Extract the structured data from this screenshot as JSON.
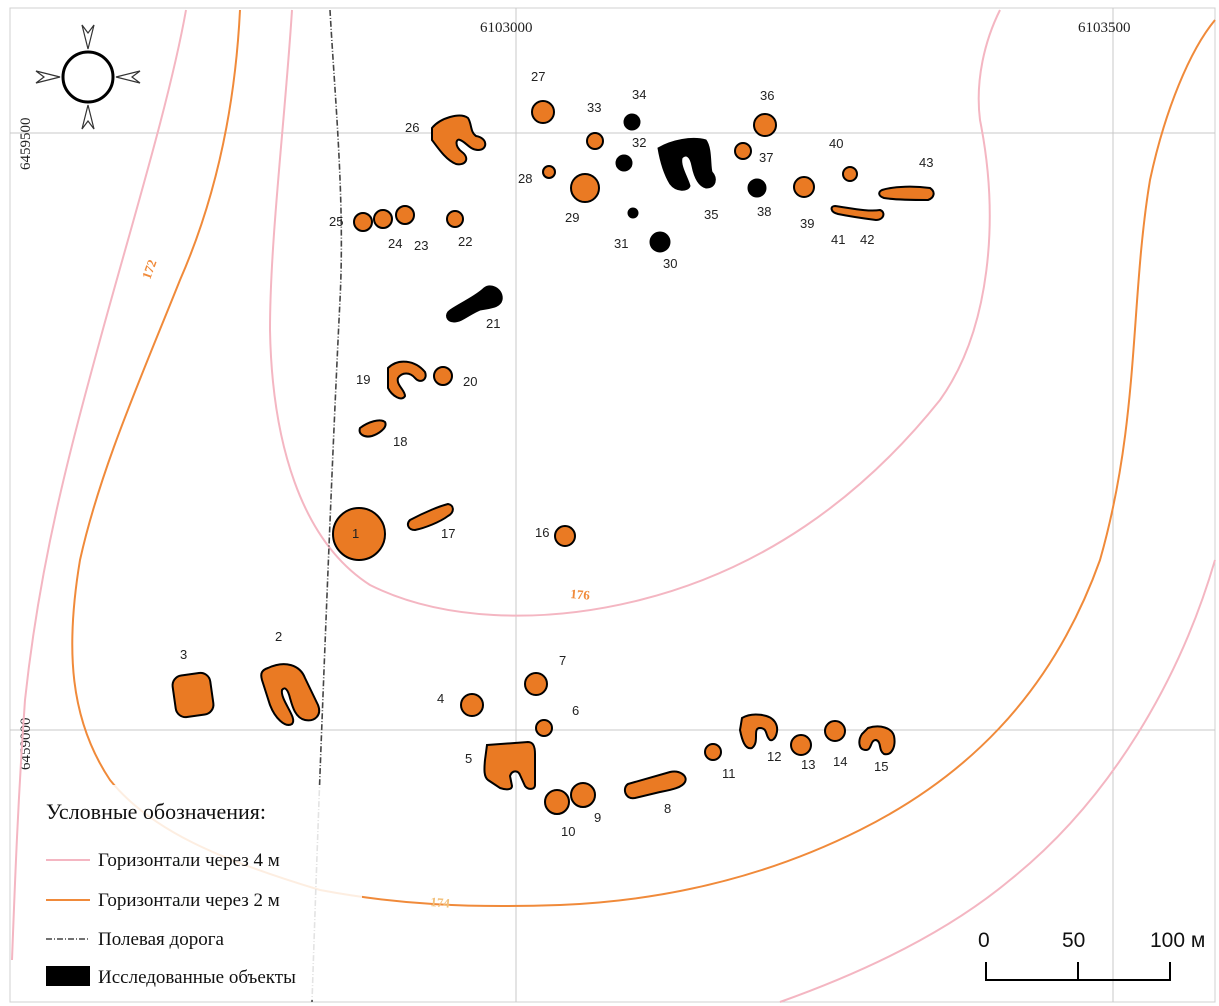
{
  "colors": {
    "contour_4m": "#f4b6c2",
    "contour_2m": "#f08a3a",
    "feature_fill": "#ea7a23",
    "explored_fill": "#000000",
    "grid": "#c8c8c8",
    "road": "#444444"
  },
  "compass": {
    "icon": "compass-rose-icon"
  },
  "coordinates": {
    "x1": "6103000",
    "x2": "6103500",
    "y1": "6459500",
    "y2": "6459000"
  },
  "contour_labels": {
    "c172": "172",
    "c176": "176",
    "c174": "174"
  },
  "features": [
    "1",
    "2",
    "3",
    "4",
    "5",
    "6",
    "7",
    "8",
    "9",
    "10",
    "11",
    "12",
    "13",
    "14",
    "15",
    "16",
    "17",
    "18",
    "19",
    "20",
    "21",
    "22",
    "23",
    "24",
    "25",
    "26",
    "27",
    "28",
    "29",
    "30",
    "31",
    "32",
    "33",
    "34",
    "35",
    "36",
    "37",
    "38",
    "39",
    "40",
    "41",
    "42",
    "43"
  ],
  "legend": {
    "title": "Условные обозначения:",
    "items": [
      {
        "symbol": "pink-line",
        "label": "Горизонтали через 4 м"
      },
      {
        "symbol": "orange-line",
        "label": "Горизонтали через 2 м"
      },
      {
        "symbol": "dashed-road",
        "label": "Полевая дорога"
      },
      {
        "symbol": "black-box",
        "label": "Исследованные объекты"
      }
    ]
  },
  "scale_bar": {
    "ticks": [
      "0",
      "50",
      "100 м"
    ]
  }
}
